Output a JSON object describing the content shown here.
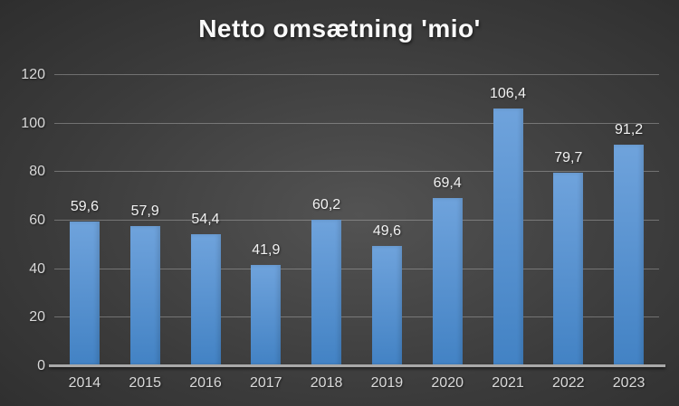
{
  "title": "Netto omsætning 'mio'",
  "chart_data": {
    "type": "bar",
    "title": "Netto omsætning 'mio'",
    "categories": [
      "2014",
      "2015",
      "2016",
      "2017",
      "2018",
      "2019",
      "2020",
      "2021",
      "2022",
      "2023"
    ],
    "values": [
      59.6,
      57.9,
      54.4,
      41.9,
      60.2,
      49.6,
      69.4,
      106.4,
      79.7,
      91.2
    ],
    "value_labels": [
      "59,6",
      "57,9",
      "54,4",
      "41,9",
      "60,2",
      "49,6",
      "69,4",
      "106,4",
      "79,7",
      "91,2"
    ],
    "xlabel": "",
    "ylabel": "",
    "ylim": [
      0,
      120
    ],
    "yticks": [
      0,
      20,
      40,
      60,
      80,
      100,
      120
    ],
    "grid": true,
    "legend": false,
    "decimal_separator": ","
  },
  "colors": {
    "bar_top": "#6FA3DC",
    "bar_bottom": "#4282C4",
    "background_center": "#535353",
    "background_edge": "#252525",
    "gridline": "rgba(205,205,205,0.38)",
    "axis_line": "#A9A9A9",
    "tick_label": "#D9D9D9",
    "data_label": "#F2F2F2",
    "title_text": "#FAFAFA"
  }
}
